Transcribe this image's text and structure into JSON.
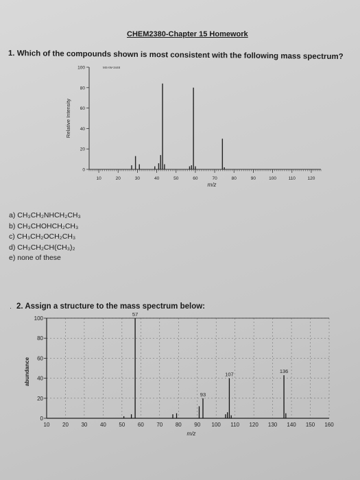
{
  "header": {
    "title": "CHEM2380-Chapter 15 Homework"
  },
  "question1": {
    "prompt": "1. Which of the compounds shown is most consistent with the following mass spectrum?",
    "answers": [
      "a)  CH₃CH₂NHCH₂CH₃",
      "b)  CH₃CHOHCH₂CH₃",
      "c)  CH₃CH₂OCH₂CH₃",
      "d)  CH₃CH₂CH(CH₃)₂",
      "e)  none of these"
    ]
  },
  "question2": {
    "bullet": "·",
    "prompt": "2. Assign a structure to the mass spectrum below:"
  },
  "chart_data": [
    {
      "type": "bar",
      "title": "MS-IW-3448",
      "xlabel": "m/z",
      "ylabel": "Relative Intensity",
      "xlim": [
        5,
        125
      ],
      "ylim": [
        0,
        100
      ],
      "xticks": [
        10,
        20,
        30,
        40,
        50,
        60,
        70,
        80,
        90,
        100,
        110,
        120
      ],
      "yticks": [
        0,
        20,
        40,
        60,
        80,
        100
      ],
      "peaks": [
        {
          "x": 27,
          "y": 4
        },
        {
          "x": 29,
          "y": 13
        },
        {
          "x": 31,
          "y": 5
        },
        {
          "x": 39,
          "y": 3
        },
        {
          "x": 41,
          "y": 6
        },
        {
          "x": 42,
          "y": 14
        },
        {
          "x": 43,
          "y": 84
        },
        {
          "x": 44,
          "y": 5
        },
        {
          "x": 57,
          "y": 3
        },
        {
          "x": 58,
          "y": 4
        },
        {
          "x": 59,
          "y": 80
        },
        {
          "x": 60,
          "y": 3
        },
        {
          "x": 74,
          "y": 30
        },
        {
          "x": 75,
          "y": 2
        }
      ]
    },
    {
      "type": "bar",
      "xlabel": "m/z",
      "ylabel": "abundance",
      "xlim": [
        10,
        160
      ],
      "ylim": [
        0,
        100
      ],
      "xticks": [
        10,
        20,
        30,
        40,
        50,
        60,
        70,
        80,
        90,
        100,
        110,
        120,
        130,
        140,
        150,
        160
      ],
      "yticks": [
        0,
        20,
        40,
        60,
        80,
        100
      ],
      "grid": true,
      "peaks": [
        {
          "x": 51,
          "y": 2
        },
        {
          "x": 55,
          "y": 4
        },
        {
          "x": 57,
          "y": 100,
          "label": "57"
        },
        {
          "x": 77,
          "y": 4
        },
        {
          "x": 79,
          "y": 5
        },
        {
          "x": 91,
          "y": 12
        },
        {
          "x": 93,
          "y": 20,
          "label": "93"
        },
        {
          "x": 105,
          "y": 4
        },
        {
          "x": 106,
          "y": 6
        },
        {
          "x": 107,
          "y": 40,
          "label": "107"
        },
        {
          "x": 108,
          "y": 3
        },
        {
          "x": 136,
          "y": 43,
          "label": "136"
        },
        {
          "x": 137,
          "y": 5
        }
      ]
    }
  ]
}
